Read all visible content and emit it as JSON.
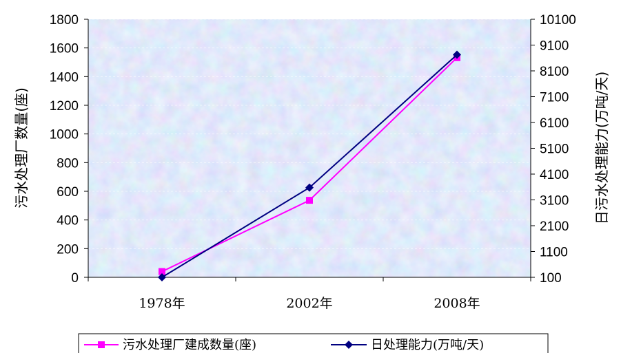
{
  "chart_data": {
    "type": "line",
    "categories": [
      "1978年",
      "2002年",
      "2008年"
    ],
    "y_left": {
      "label": "污水处理厂数量(座)",
      "range": [
        0,
        1800
      ],
      "ticks": [
        0,
        200,
        400,
        600,
        800,
        1000,
        1200,
        1400,
        1600,
        1800
      ]
    },
    "y_right": {
      "label": "日污水处理能力(万吨/天)",
      "range": [
        100,
        10100
      ],
      "ticks": [
        100,
        1100,
        2100,
        3100,
        4100,
        5100,
        6100,
        7100,
        8100,
        9100,
        10100
      ]
    },
    "series": [
      {
        "name": "污水处理厂建成数量(座)",
        "axis": "left",
        "color": "#ff00ff",
        "marker": "square",
        "values": [
          40,
          537,
          1532
        ]
      },
      {
        "name": "日处理能力(万吨/天)",
        "axis": "right",
        "color": "#000080",
        "marker": "diamond",
        "values": [
          64,
          3578,
          8726
        ]
      }
    ],
    "grid": true,
    "legend_position": "bottom"
  }
}
